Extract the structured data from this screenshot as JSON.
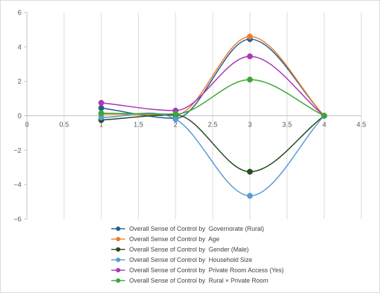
{
  "chart_data": {
    "type": "line",
    "smooth": true,
    "title": "",
    "xlabel": "",
    "ylabel": "",
    "xlim": [
      0,
      4.5
    ],
    "ylim": [
      -6,
      6
    ],
    "xticks": [
      0,
      0.5,
      1,
      1.5,
      2,
      2.5,
      3,
      3.5,
      4,
      4.5
    ],
    "yticks": [
      6,
      4,
      2,
      0,
      -2,
      -4,
      -6
    ],
    "xtick_labels": [
      "0",
      "0.5",
      "1",
      "1.5",
      "2",
      "2.5",
      "3",
      "3.5",
      "4",
      "4.5"
    ],
    "ytick_labels": [
      "6",
      "4",
      "2",
      "0",
      "−2",
      "−4",
      "−6"
    ],
    "grid": "vertical",
    "legend_position": "bottom",
    "x": [
      1,
      2,
      3,
      4
    ],
    "series": [
      {
        "name": "Overall Sense of Control by  Governorate (Rural)",
        "color": "#255e91",
        "values": [
          0.45,
          -0.15,
          4.45,
          0.0
        ]
      },
      {
        "name": "Overall Sense of Control by  Age",
        "color": "#ed7d31",
        "values": [
          0.1,
          0.05,
          4.6,
          0.0
        ]
      },
      {
        "name": "Overall Sense of Control by  Gender (Male)",
        "color": "#264d1f",
        "values": [
          -0.25,
          0.05,
          -3.25,
          0.0
        ]
      },
      {
        "name": "Overall Sense of Control by  Household Size",
        "color": "#5b9bd5",
        "values": [
          -0.1,
          -0.2,
          -4.65,
          0.0
        ]
      },
      {
        "name": "Overall Sense of Control by  Private Room Access (Yes)",
        "color": "#a83ab7",
        "values": [
          0.75,
          0.3,
          3.45,
          0.0
        ]
      },
      {
        "name": "Overall Sense of Control by  Rural × Private Room",
        "color": "#3aa935",
        "values": [
          0.15,
          0.1,
          2.1,
          0.0
        ]
      }
    ]
  }
}
